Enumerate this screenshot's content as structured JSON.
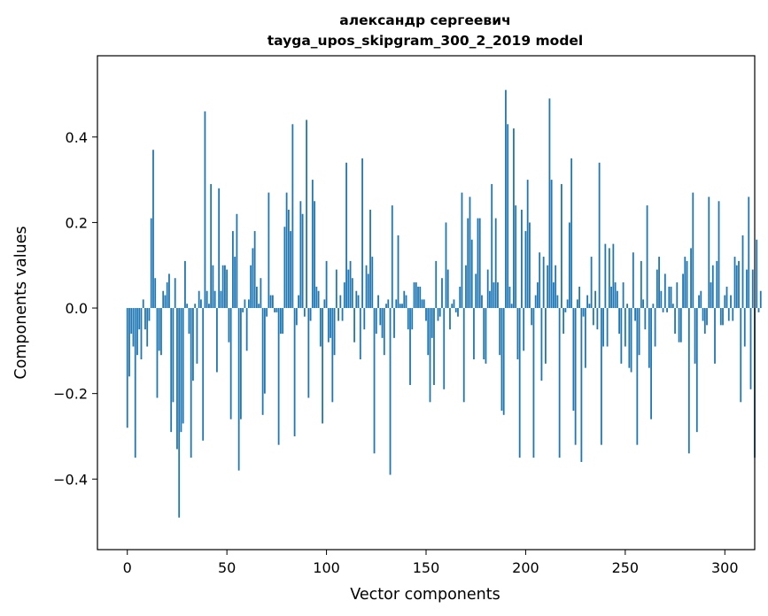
{
  "chart_data": {
    "type": "bar",
    "title_line1": "александр сергеевич",
    "title_line2": "tayga_upos_skipgram_300_2_2019 model",
    "xlabel": "Vector components",
    "ylabel": "Components values",
    "xlim": [
      -15,
      315
    ],
    "ylim": [
      -0.565,
      0.59
    ],
    "xticks": [
      0,
      50,
      100,
      150,
      200,
      250,
      300
    ],
    "xtick_labels": [
      "0",
      "50",
      "100",
      "150",
      "200",
      "250",
      "300"
    ],
    "yticks": [
      -0.4,
      -0.2,
      0.0,
      0.2,
      0.4
    ],
    "ytick_labels": [
      "−0.4",
      "−0.2",
      "0.0",
      "0.2",
      "0.4"
    ],
    "bar_color": "#1f77b4",
    "values": [
      -0.28,
      -0.16,
      -0.06,
      -0.09,
      -0.35,
      -0.11,
      -0.05,
      -0.12,
      0.02,
      -0.05,
      -0.09,
      -0.03,
      0.21,
      0.37,
      0.07,
      -0.21,
      -0.1,
      -0.11,
      0.04,
      0.03,
      0.06,
      0.08,
      -0.29,
      -0.22,
      0.07,
      -0.33,
      -0.49,
      -0.29,
      -0.27,
      0.11,
      0.01,
      -0.06,
      -0.35,
      -0.17,
      0.01,
      -0.13,
      0.04,
      0.02,
      -0.31,
      0.46,
      0.04,
      0.01,
      0.29,
      0.1,
      0.04,
      -0.15,
      0.28,
      0.04,
      0.1,
      0.1,
      0.09,
      -0.08,
      -0.26,
      0.18,
      0.12,
      0.22,
      -0.38,
      -0.26,
      -0.01,
      0.02,
      -0.1,
      0.02,
      0.1,
      0.14,
      0.18,
      0.05,
      0.01,
      0.07,
      -0.25,
      -0.2,
      -0.02,
      0.27,
      0.03,
      0.03,
      -0.01,
      -0.01,
      -0.32,
      -0.06,
      -0.06,
      0.19,
      0.27,
      0.23,
      0.18,
      0.43,
      -0.3,
      -0.04,
      0.03,
      0.25,
      0.22,
      -0.02,
      0.44,
      -0.21,
      -0.03,
      0.3,
      0.25,
      0.05,
      0.04,
      -0.09,
      -0.27,
      0.02,
      0.11,
      -0.08,
      -0.07,
      -0.22,
      -0.11,
      0.09,
      -0.03,
      0.03,
      -0.03,
      0.06,
      0.34,
      0.09,
      0.11,
      0.07,
      -0.08,
      0.04,
      0.03,
      -0.12,
      0.35,
      -0.05,
      0.1,
      0.08,
      0.23,
      0.12,
      -0.34,
      -0.06,
      0.03,
      -0.04,
      -0.07,
      -0.11,
      0.01,
      0.02,
      -0.39,
      0.24,
      -0.07,
      0.02,
      0.17,
      0.01,
      0.01,
      0.04,
      0.03,
      -0.05,
      -0.18,
      -0.05,
      0.06,
      0.06,
      0.05,
      0.05,
      0.02,
      0.02,
      -0.03,
      -0.11,
      -0.22,
      -0.07,
      -0.18,
      0.11,
      -0.03,
      -0.02,
      0.07,
      -0.19,
      0.2,
      0.09,
      -0.05,
      0.01,
      0.02,
      -0.01,
      -0.02,
      0.05,
      0.27,
      -0.22,
      0.1,
      0.21,
      0.26,
      0.16,
      -0.12,
      0.08,
      0.21,
      0.21,
      0.03,
      -0.12,
      -0.13,
      0.09,
      0.04,
      0.29,
      0.06,
      0.21,
      0.06,
      -0.11,
      -0.24,
      -0.25,
      0.51,
      0.43,
      0.05,
      0.01,
      0.42,
      0.24,
      -0.12,
      -0.35,
      0.23,
      -0.1,
      0.18,
      0.3,
      0.2,
      -0.04,
      -0.35,
      0.03,
      0.06,
      0.13,
      -0.17,
      0.12,
      -0.13,
      0.1,
      0.49,
      0.3,
      0.06,
      0.1,
      0.03,
      -0.35,
      0.29,
      -0.06,
      -0.01,
      0.02,
      0.2,
      0.35,
      -0.24,
      -0.32,
      0.02,
      0.05,
      -0.36,
      -0.02,
      -0.14,
      0.03,
      0.01,
      0.12,
      -0.04,
      0.04,
      -0.05,
      0.34,
      -0.32,
      -0.09,
      0.15,
      -0.09,
      0.14,
      0.05,
      0.15,
      0.06,
      0.04,
      -0.06,
      -0.13,
      0.06,
      -0.09,
      0.01,
      -0.14,
      -0.15,
      0.13,
      -0.03,
      -0.32,
      -0.11,
      0.11,
      0.02,
      -0.05,
      0.24,
      -0.14,
      -0.26,
      0.01,
      -0.09,
      0.09,
      0.12,
      0.04,
      -0.01,
      0.08,
      -0.01,
      0.05,
      0.05,
      0.01,
      -0.06,
      0.06,
      -0.08,
      -0.08,
      0.08,
      0.12,
      0.11,
      -0.34,
      0.14,
      0.27,
      -0.13,
      -0.29,
      0.03,
      0.04,
      -0.03,
      -0.06,
      -0.04,
      0.26,
      0.06,
      0.1,
      -0.13,
      0.11,
      0.25,
      -0.04,
      -0.04,
      0.03,
      0.05,
      -0.03,
      0.03,
      -0.03,
      0.12,
      0.1,
      0.11,
      -0.22,
      0.17,
      -0.09,
      0.09,
      0.26,
      -0.19,
      0.09,
      -0.35,
      0.16,
      -0.01,
      0.04
    ]
  }
}
